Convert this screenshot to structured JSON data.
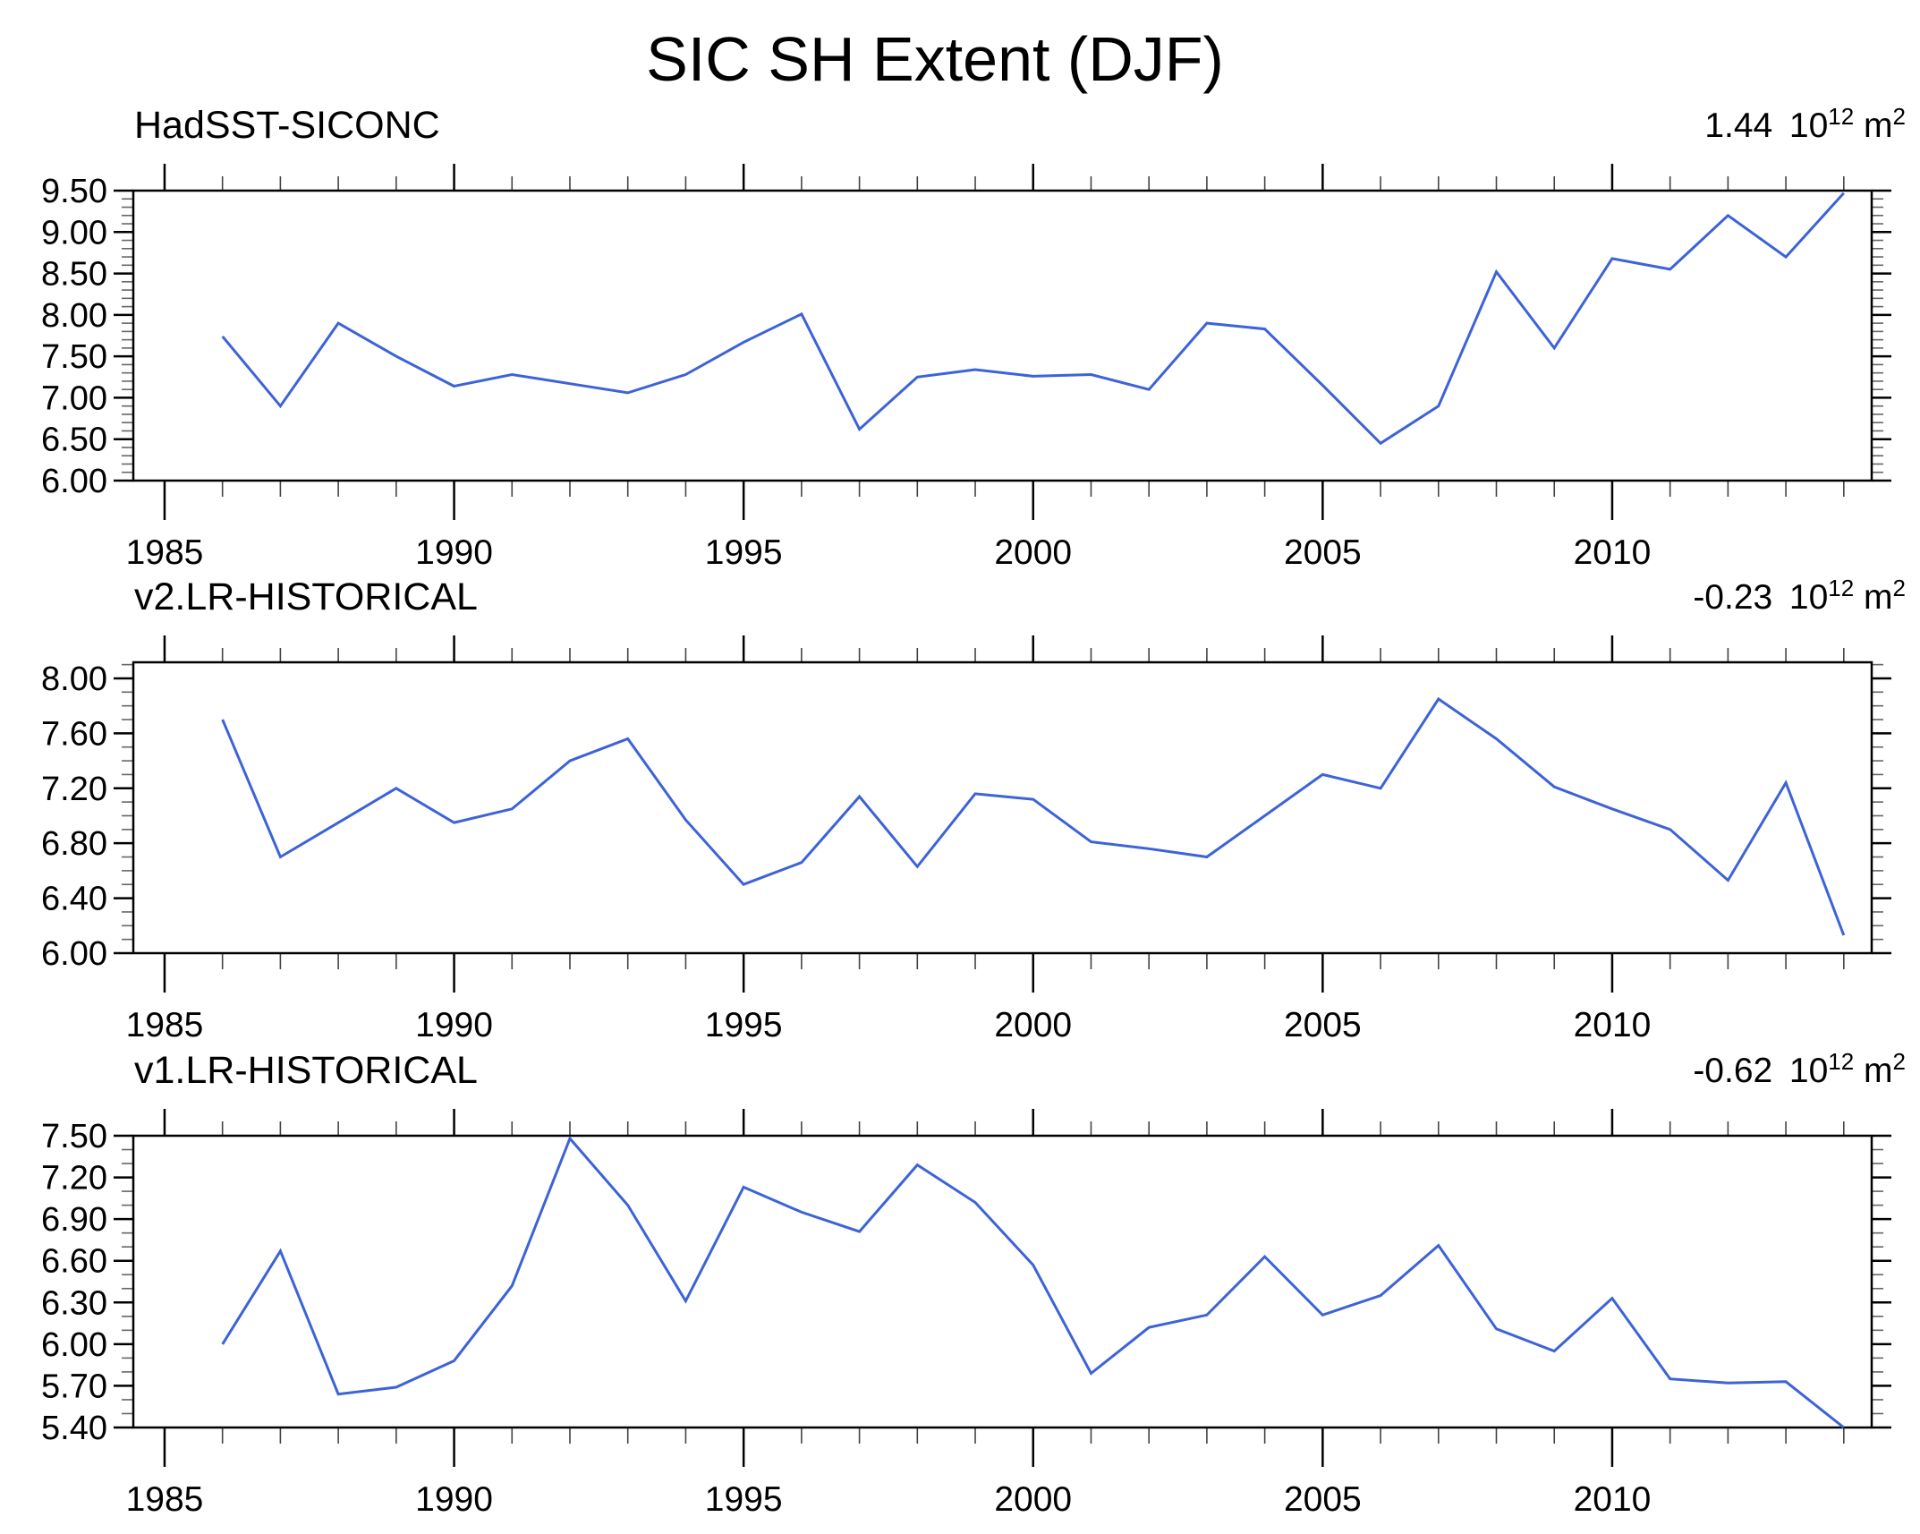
{
  "page_title": "SIC SH Extent (DJF)",
  "line_color": "#3c63d7",
  "axis_color": "#000000",
  "minor_tick_color": "#666666",
  "chart_data": [
    {
      "type": "line",
      "title": "HadSST-SICONC",
      "annotation": {
        "value": "1.44",
        "mantissa": "10",
        "exponent": "12",
        "unit": "m",
        "unit_exponent": "2"
      },
      "x": [
        1986,
        1987,
        1988,
        1989,
        1990,
        1991,
        1992,
        1993,
        1994,
        1995,
        1996,
        1997,
        1998,
        1999,
        2000,
        2001,
        2002,
        2003,
        2004,
        2005,
        2006,
        2007,
        2008,
        2009,
        2010,
        2011,
        2012,
        2013,
        2014
      ],
      "values": [
        7.74,
        6.9,
        7.9,
        7.5,
        7.14,
        7.28,
        7.17,
        7.06,
        7.28,
        7.67,
        8.01,
        6.62,
        7.25,
        7.34,
        7.26,
        7.28,
        7.1,
        7.9,
        7.83,
        7.15,
        6.45,
        6.9,
        8.52,
        7.6,
        8.68,
        8.55,
        9.2,
        8.7,
        9.47
      ],
      "ylim": [
        6.0,
        9.5
      ],
      "ytick_values": [
        6.0,
        6.5,
        7.0,
        7.5,
        8.0,
        8.5,
        9.0,
        9.5
      ],
      "ytick_labels": [
        "6.00",
        "6.50",
        "7.00",
        "7.50",
        "8.00",
        "8.50",
        "9.00",
        "9.50"
      ],
      "minor_step": 0.1,
      "xlabel_years": [
        1985,
        1990,
        1995,
        2000,
        2005,
        2010
      ],
      "xlabels": [
        "1985",
        "1990",
        "1995",
        "2000",
        "2005",
        "2010"
      ]
    },
    {
      "type": "line",
      "title": "v2.LR-HISTORICAL",
      "annotation": {
        "value": "-0.23",
        "mantissa": "10",
        "exponent": "12",
        "unit": "m",
        "unit_exponent": "2"
      },
      "x": [
        1986,
        1987,
        1988,
        1989,
        1990,
        1991,
        1992,
        1993,
        1994,
        1995,
        1996,
        1997,
        1998,
        1999,
        2000,
        2001,
        2002,
        2003,
        2004,
        2005,
        2006,
        2007,
        2008,
        2009,
        2010,
        2011,
        2012,
        2013,
        2014
      ],
      "values": [
        7.7,
        6.7,
        6.95,
        7.2,
        6.95,
        7.05,
        7.4,
        7.56,
        6.97,
        6.5,
        6.66,
        7.14,
        6.63,
        7.16,
        7.12,
        6.81,
        6.76,
        6.7,
        7.0,
        7.3,
        7.2,
        7.85,
        7.56,
        7.21,
        7.05,
        6.9,
        6.53,
        7.24,
        6.13
      ],
      "ylim": [
        6.0,
        8.117
      ],
      "ytick_values": [
        6.0,
        6.4,
        6.8,
        7.2,
        7.6,
        8.0
      ],
      "ytick_labels": [
        "6.00",
        "6.40",
        "6.80",
        "7.20",
        "7.60",
        "8.00"
      ],
      "minor_step": 0.1,
      "xlabel_years": [
        1985,
        1990,
        1995,
        2000,
        2005,
        2010
      ],
      "xlabels": [
        "1985",
        "1990",
        "1995",
        "2000",
        "2005",
        "2010"
      ]
    },
    {
      "type": "line",
      "title": "v1.LR-HISTORICAL",
      "annotation": {
        "value": "-0.62",
        "mantissa": "10",
        "exponent": "12",
        "unit": "m",
        "unit_exponent": "2"
      },
      "x": [
        1986,
        1987,
        1988,
        1989,
        1990,
        1991,
        1992,
        1993,
        1994,
        1995,
        1996,
        1997,
        1998,
        1999,
        2000,
        2001,
        2002,
        2003,
        2004,
        2005,
        2006,
        2007,
        2008,
        2009,
        2010,
        2011,
        2012,
        2013,
        2014
      ],
      "values": [
        6.0,
        6.67,
        5.64,
        5.69,
        5.88,
        6.42,
        7.48,
        7.0,
        6.31,
        7.13,
        6.95,
        6.81,
        7.29,
        7.02,
        6.57,
        5.79,
        6.12,
        6.21,
        6.63,
        6.21,
        6.35,
        6.71,
        6.11,
        5.95,
        6.33,
        5.75,
        5.72,
        5.73,
        5.4
      ],
      "ylim": [
        5.4,
        7.5
      ],
      "ytick_values": [
        5.4,
        5.7,
        6.0,
        6.3,
        6.6,
        6.9,
        7.2,
        7.5
      ],
      "ytick_labels": [
        "5.40",
        "5.70",
        "6.00",
        "6.30",
        "6.60",
        "6.90",
        "7.20",
        "7.50"
      ],
      "minor_step": 0.1,
      "xlabel_years": [
        1985,
        1990,
        1995,
        2000,
        2005,
        2010
      ],
      "xlabels": [
        "1985",
        "1990",
        "1995",
        "2000",
        "2005",
        "2010"
      ]
    }
  ]
}
